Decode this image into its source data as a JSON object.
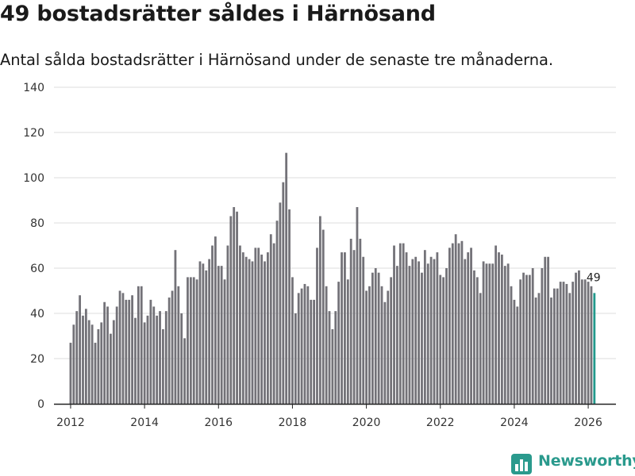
{
  "header": {
    "title": "49 bostadsrätter såldes i Härnösand",
    "subtitle": "Antal sålda bostadsrätter i Härnösand under de senaste tre månaderna."
  },
  "brand": {
    "name": "Newsworthy",
    "icon": "newsworthy-chart-icon"
  },
  "colors": {
    "bar": "#737278",
    "highlight": "#22998c",
    "grid": "#dddddd",
    "axis": "#222222"
  },
  "chart_data": {
    "type": "bar",
    "title": "49 bostadsrätter såldes i Härnösand",
    "xlabel": "",
    "ylabel": "",
    "ylim": [
      0,
      140
    ],
    "yticks": [
      0,
      20,
      40,
      60,
      80,
      100,
      120,
      140
    ],
    "ytick_labels": [
      "0",
      "20",
      "40",
      "60",
      "80",
      "100",
      "120",
      "140"
    ],
    "xticks": [
      2012,
      2014,
      2016,
      2018,
      2020,
      2022,
      2024,
      2026
    ],
    "xtick_labels": [
      "2012",
      "2014",
      "2016",
      "2018",
      "2020",
      "2022",
      "2024",
      "2026"
    ],
    "xlim": [
      2011.55,
      2026.75
    ],
    "series": [
      {
        "name": "Sålda bostadsrätter",
        "start": {
          "year": 2012,
          "month": 1
        },
        "frequency": "monthly",
        "values": [
          27,
          35,
          41,
          48,
          39,
          42,
          37,
          35,
          27,
          33,
          36,
          45,
          43,
          31,
          37,
          43,
          50,
          49,
          46,
          46,
          48,
          38,
          52,
          52,
          36,
          39,
          46,
          43,
          39,
          41,
          33,
          41,
          47,
          50,
          68,
          52,
          40,
          29,
          56,
          56,
          56,
          55,
          63,
          62,
          59,
          64,
          70,
          74,
          61,
          61,
          55,
          70,
          83,
          87,
          85,
          70,
          67,
          65,
          64,
          63,
          69,
          69,
          66,
          63,
          67,
          75,
          71,
          81,
          89,
          98,
          111,
          86,
          56,
          40,
          49,
          51,
          53,
          52,
          46,
          46,
          69,
          83,
          77,
          52,
          41,
          33,
          41,
          54,
          67,
          67,
          55,
          73,
          68,
          87,
          73,
          65,
          50,
          52,
          58,
          60,
          58,
          52,
          45,
          50,
          56,
          70,
          61,
          71,
          71,
          67,
          61,
          64,
          65,
          63,
          58,
          68,
          62,
          65,
          64,
          67,
          57,
          56,
          60,
          69,
          71,
          75,
          71,
          72,
          64,
          67,
          69,
          59,
          56,
          49,
          63,
          62,
          62,
          62,
          70,
          67,
          66,
          61,
          62,
          52,
          46,
          43,
          55,
          58,
          57,
          57,
          60,
          47,
          49,
          60,
          65,
          65,
          47,
          51,
          51,
          54,
          54,
          53,
          49,
          54,
          58,
          59,
          55,
          55,
          54,
          52,
          49
        ]
      }
    ],
    "annotations": [
      {
        "label": "49",
        "target": "last-bar"
      }
    ]
  }
}
